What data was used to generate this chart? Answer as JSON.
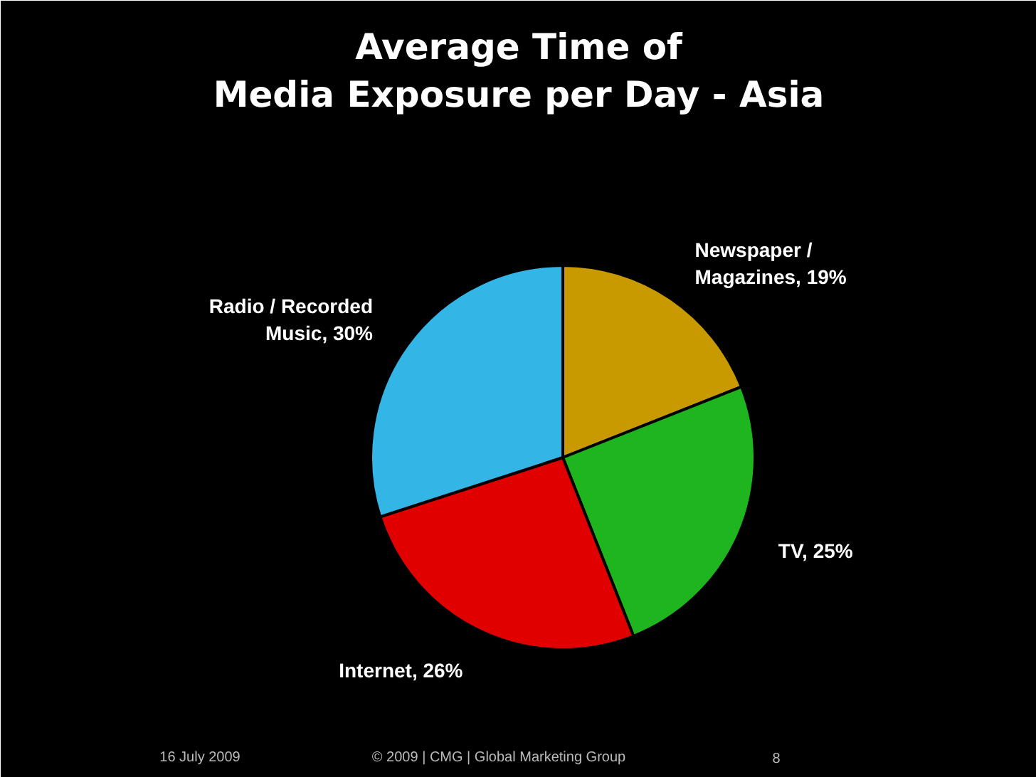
{
  "chart_data": {
    "type": "pie",
    "title": "Average Time of\nMedia Exposure per Day - Asia",
    "categories": [
      "Newspaper / Magazines",
      "TV",
      "Internet",
      "Radio / Recorded Music"
    ],
    "values": [
      19,
      25,
      26,
      30
    ],
    "value_labels": [
      "19%",
      "25%",
      "26%",
      "30%"
    ],
    "colors": [
      "#c89a00",
      "#1fb51f",
      "#e00000",
      "#33b5e5"
    ],
    "annotations": [
      "16 July 2009",
      "© 2009 | CMG | Global Marketing Group",
      "8"
    ]
  }
}
